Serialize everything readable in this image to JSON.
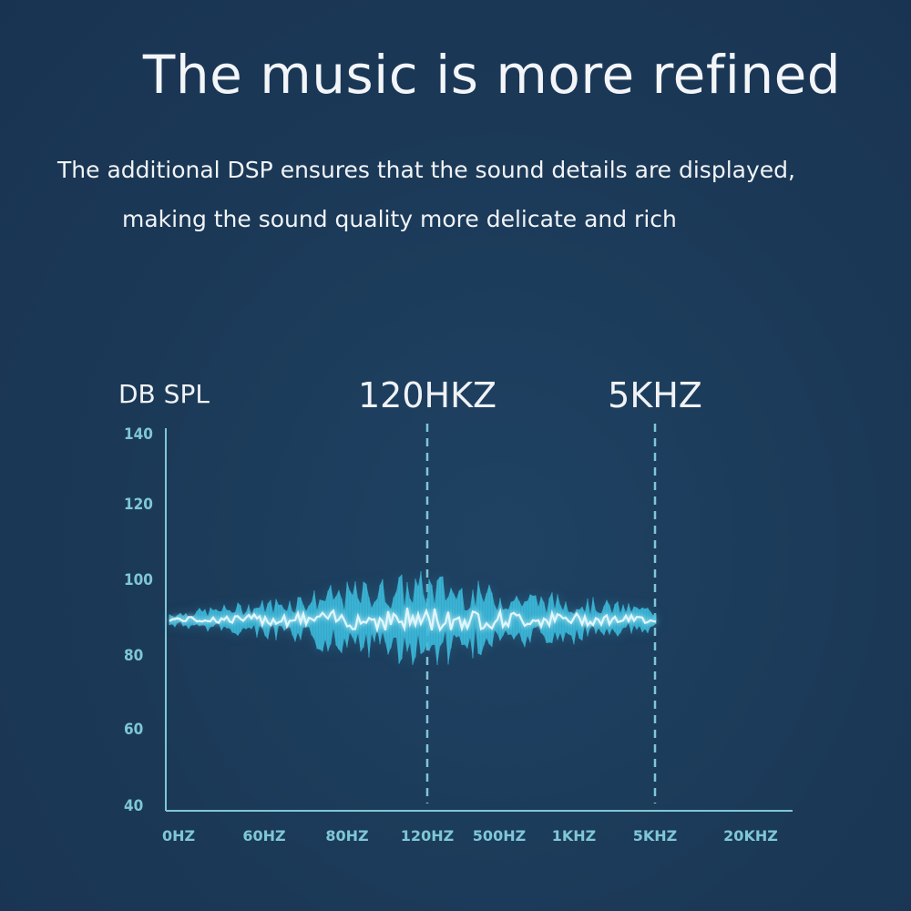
{
  "headline": "The music is more refined",
  "subtitle": {
    "line1": "The additional DSP ensures that the sound details are displayed,",
    "line2": "making  the sound quality more delicate and rich"
  },
  "colors": {
    "background": "#1b3957",
    "axis": "#7fc7d6",
    "wave_core": "#e9fbff",
    "wave_glow": "#3fc4e6",
    "wave_fade": "#2a6f8f"
  },
  "chart_data": {
    "type": "area",
    "ylabel": "DB SPL",
    "xlabel": "",
    "y_ticks": [
      "140",
      "120",
      "100",
      "80",
      "60",
      "40"
    ],
    "ylim": [
      40,
      140
    ],
    "categories": [
      "0HZ",
      "60HZ",
      "80HZ",
      "120HZ",
      "500HZ",
      "1KHZ",
      "5KHZ",
      "20KHZ"
    ],
    "markers": [
      {
        "label": "120HKZ",
        "at": "120HZ"
      },
      {
        "label": "5KHZ",
        "at": "5KHZ"
      }
    ],
    "series": [
      {
        "x": [
          "0HZ",
          "60HZ",
          "80HZ",
          "120HZ",
          "500HZ",
          "1KHZ",
          "5KHZ"
        ],
        "center": [
          91,
          91,
          91,
          91,
          91,
          91,
          91
        ],
        "spread": [
          2,
          5,
          9,
          12,
          8,
          6,
          3
        ]
      }
    ],
    "grid": false
  }
}
